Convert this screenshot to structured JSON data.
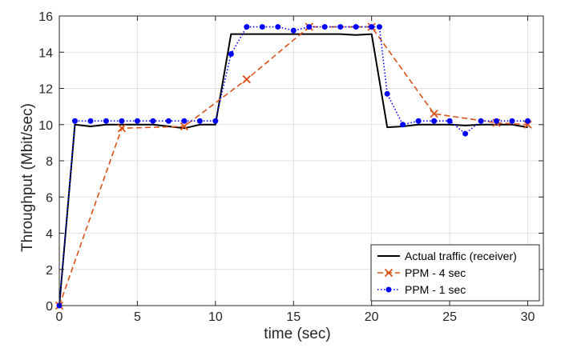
{
  "chart_data": {
    "type": "line",
    "title": "",
    "xlabel": "time (sec)",
    "ylabel": "Throughput (Mbit/sec)",
    "xlim": [
      0,
      31
    ],
    "ylim": [
      0,
      16
    ],
    "xticks": [
      0,
      5,
      10,
      15,
      20,
      25,
      30
    ],
    "yticks": [
      0,
      2,
      4,
      6,
      8,
      10,
      12,
      14,
      16
    ],
    "grid": true,
    "legend_position": "bottom-right",
    "series": [
      {
        "name": "Actual traffic (receiver)",
        "color": "#000000",
        "line_style": "solid",
        "marker": "none",
        "x": [
          0,
          1,
          2,
          3,
          4,
          5,
          6,
          7,
          8,
          9,
          10,
          11,
          12,
          13,
          14,
          15,
          16,
          17,
          18,
          19,
          20,
          21,
          22,
          23,
          24,
          25,
          26,
          27,
          28,
          29,
          30
        ],
        "y": [
          0,
          10.0,
          9.9,
          10.0,
          10.0,
          10.0,
          10.0,
          9.9,
          9.8,
          10.0,
          10.0,
          15.0,
          15.0,
          15.0,
          15.0,
          15.0,
          15.0,
          15.0,
          15.0,
          14.95,
          15.0,
          9.85,
          9.9,
          10.0,
          10.0,
          10.0,
          9.95,
          10.0,
          10.0,
          10.0,
          9.85
        ]
      },
      {
        "name": "PPM - 4 sec",
        "color": "#d95319",
        "line_style": "dashed",
        "marker": "x",
        "x": [
          0,
          4,
          8,
          12,
          16,
          20,
          24,
          28,
          30
        ],
        "y": [
          0,
          9.8,
          9.9,
          12.5,
          15.4,
          15.4,
          10.6,
          10.1,
          10.0
        ]
      },
      {
        "name": "PPM - 1 sec",
        "color": "#0000ff",
        "line_style": "dotted",
        "marker": "circle",
        "x": [
          0,
          1,
          2,
          3,
          4,
          5,
          6,
          7,
          8,
          9,
          10,
          11,
          12,
          13,
          14,
          15,
          16,
          17,
          18,
          19,
          20,
          20.5,
          21,
          22,
          23,
          24,
          25,
          26,
          27,
          28,
          29,
          30
        ],
        "y": [
          0,
          10.2,
          10.2,
          10.2,
          10.2,
          10.2,
          10.2,
          10.2,
          10.2,
          10.2,
          10.2,
          13.9,
          15.4,
          15.4,
          15.4,
          15.2,
          15.4,
          15.4,
          15.4,
          15.4,
          15.4,
          15.4,
          11.7,
          10.0,
          10.2,
          10.2,
          10.2,
          9.5,
          10.2,
          10.2,
          10.2,
          10.2
        ]
      }
    ]
  }
}
